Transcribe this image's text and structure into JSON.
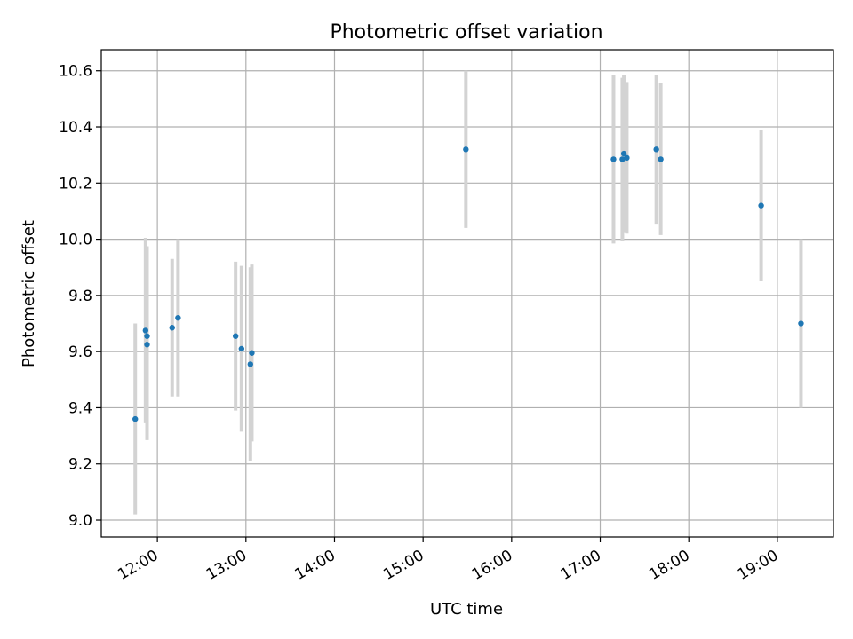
{
  "chart_data": {
    "type": "scatter",
    "title": "Photometric offset variation",
    "xlabel": "UTC time",
    "ylabel": "Photometric offset",
    "grid": true,
    "xlim": [
      "11:22",
      "19:38"
    ],
    "ylim": [
      8.94,
      10.675
    ],
    "x_ticks": [
      "12:00",
      "13:00",
      "14:00",
      "15:00",
      "16:00",
      "17:00",
      "18:00",
      "19:00"
    ],
    "y_ticks": [
      "9.0",
      "9.2",
      "9.4",
      "9.6",
      "9.8",
      "10.0",
      "10.2",
      "10.4",
      "10.6"
    ],
    "marker_color": "#1f77b4",
    "errorbar_color": "#d3d3d3",
    "points": [
      {
        "x": "11:45",
        "y": 9.36,
        "err": 0.34
      },
      {
        "x": "11:52",
        "y": 9.675,
        "err": 0.33
      },
      {
        "x": "11:53",
        "y": 9.655,
        "err": 0.32
      },
      {
        "x": "11:53",
        "y": 9.625,
        "err": 0.34
      },
      {
        "x": "12:10",
        "y": 9.685,
        "err": 0.245
      },
      {
        "x": "12:14",
        "y": 9.72,
        "err": 0.28
      },
      {
        "x": "12:53",
        "y": 9.655,
        "err": 0.265
      },
      {
        "x": "12:57",
        "y": 9.61,
        "err": 0.295
      },
      {
        "x": "13:03",
        "y": 9.555,
        "err": 0.345
      },
      {
        "x": "13:04",
        "y": 9.595,
        "err": 0.315
      },
      {
        "x": "15:29",
        "y": 10.32,
        "err": 0.28
      },
      {
        "x": "17:09",
        "y": 10.285,
        "err": 0.3
      },
      {
        "x": "17:15",
        "y": 10.285,
        "err": 0.29
      },
      {
        "x": "17:16",
        "y": 10.305,
        "err": 0.28
      },
      {
        "x": "17:18",
        "y": 10.29,
        "err": 0.27
      },
      {
        "x": "17:38",
        "y": 10.32,
        "err": 0.265
      },
      {
        "x": "17:41",
        "y": 10.285,
        "err": 0.27
      },
      {
        "x": "18:49",
        "y": 10.12,
        "err": 0.27
      },
      {
        "x": "19:16",
        "y": 9.7,
        "err": 0.3
      }
    ]
  }
}
